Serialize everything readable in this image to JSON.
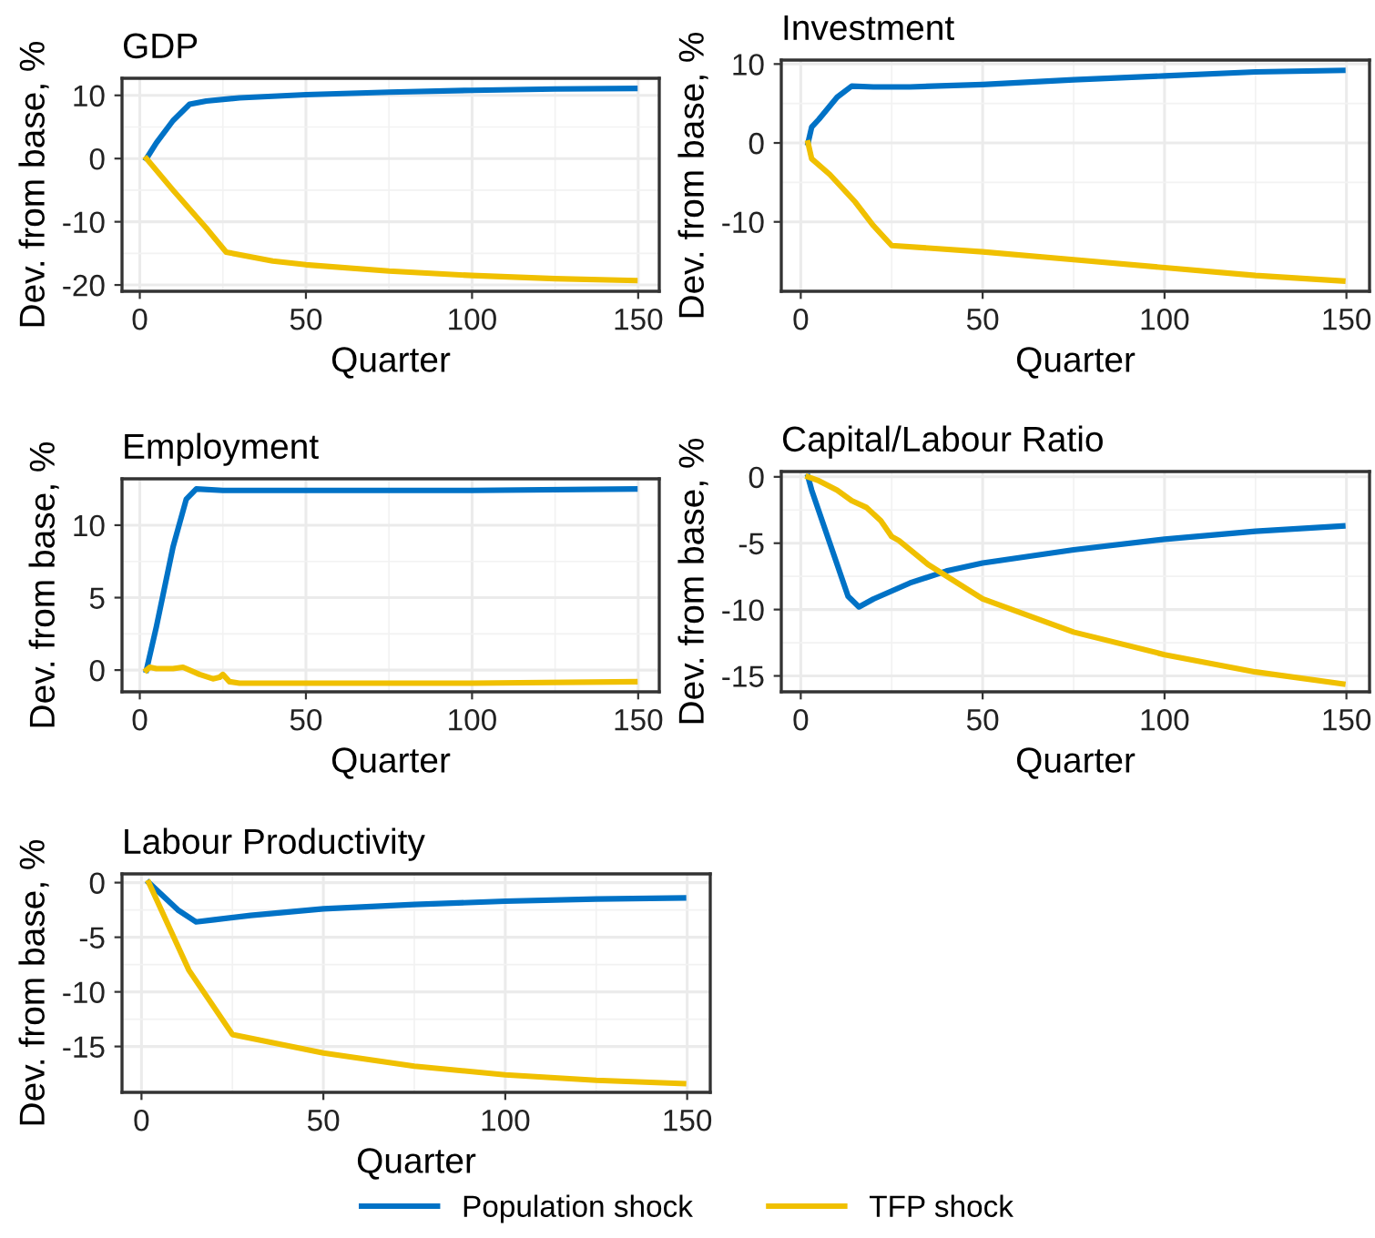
{
  "chart_data": [
    {
      "type": "line",
      "title": "GDP",
      "xlabel": "Quarter",
      "ylabel": "Dev. from base, %",
      "xlim": [
        -5.35,
        156.35
      ],
      "xticks": [
        0,
        50,
        100,
        150
      ],
      "ylim": [
        -21,
        12.7
      ],
      "yticks": [
        -20,
        -10,
        0,
        10
      ],
      "grid": true,
      "legend": "bottom",
      "series": [
        {
          "name": "Population shock",
          "color": "#0072c6",
          "x": [
            2,
            5,
            10,
            15,
            20,
            30,
            50,
            75,
            100,
            125,
            149
          ],
          "values": [
            0,
            2.5,
            6,
            8.6,
            9.1,
            9.6,
            10.1,
            10.5,
            10.8,
            11,
            11.1
          ]
        },
        {
          "name": "TFP shock",
          "color": "#f0c000",
          "x": [
            2,
            10,
            20,
            26,
            40,
            50,
            75,
            100,
            125,
            149
          ],
          "values": [
            0,
            -5,
            -11,
            -14.8,
            -16.2,
            -16.8,
            -17.8,
            -18.5,
            -19,
            -19.3
          ]
        }
      ]
    },
    {
      "type": "line",
      "title": "Investment",
      "xlabel": "Quarter",
      "ylabel": "Dev. from base, %",
      "xlim": [
        -5.35,
        156.35
      ],
      "xticks": [
        0,
        50,
        100,
        150
      ],
      "ylim": [
        -18.8,
        10.5
      ],
      "yticks": [
        -10,
        0,
        10
      ],
      "grid": true,
      "series": [
        {
          "color": "#0072c6",
          "x": [
            2,
            3,
            5,
            10,
            14,
            20,
            30,
            50,
            75,
            100,
            125,
            149
          ],
          "values": [
            0,
            2,
            3,
            5.8,
            7.2,
            7.1,
            7.1,
            7.4,
            8,
            8.5,
            9,
            9.2
          ]
        },
        {
          "color": "#f0c000",
          "x": [
            2,
            3,
            8,
            15,
            20,
            25,
            50,
            75,
            100,
            125,
            149
          ],
          "values": [
            0,
            -2,
            -4,
            -7.5,
            -10.5,
            -13,
            -13.8,
            -14.8,
            -15.8,
            -16.8,
            -17.5
          ]
        }
      ]
    },
    {
      "type": "line",
      "title": "Employment",
      "xlabel": "Quarter",
      "ylabel": "Dev. from base, %",
      "xlim": [
        -5.35,
        156.35
      ],
      "xticks": [
        0,
        50,
        100,
        150
      ],
      "ylim": [
        -1.5,
        13.2
      ],
      "yticks": [
        0,
        5,
        10
      ],
      "grid": true,
      "series": [
        {
          "color": "#0072c6",
          "x": [
            2,
            5,
            10,
            14,
            17,
            25,
            50,
            100,
            149
          ],
          "values": [
            0,
            3,
            8.5,
            11.8,
            12.5,
            12.4,
            12.4,
            12.4,
            12.5
          ]
        },
        {
          "color": "#f0c000",
          "x": [
            2,
            3,
            5,
            10,
            13,
            18,
            22,
            24,
            25,
            27,
            30,
            50,
            100,
            149
          ],
          "values": [
            0,
            0.2,
            0.1,
            0.1,
            0.2,
            -0.3,
            -0.6,
            -0.5,
            -0.3,
            -0.8,
            -0.9,
            -0.9,
            -0.9,
            -0.8
          ]
        }
      ]
    },
    {
      "type": "line",
      "title": "Capital/Labour Ratio",
      "xlabel": "Quarter",
      "ylabel": "Dev. from base, %",
      "xlim": [
        -5.35,
        156.35
      ],
      "xticks": [
        0,
        50,
        100,
        150
      ],
      "ylim": [
        -16.2,
        0.4
      ],
      "yticks": [
        -15,
        -10,
        -5,
        0
      ],
      "grid": true,
      "series": [
        {
          "color": "#0072c6",
          "x": [
            2,
            3,
            8,
            13,
            16,
            20,
            30,
            40,
            50,
            75,
            100,
            125,
            149
          ],
          "values": [
            0,
            -1,
            -5,
            -9,
            -9.8,
            -9.2,
            -8,
            -7.1,
            -6.5,
            -5.5,
            -4.7,
            -4.1,
            -3.7
          ]
        },
        {
          "color": "#f0c000",
          "x": [
            2,
            5,
            10,
            14,
            18,
            22,
            25,
            27,
            35,
            50,
            75,
            100,
            125,
            149
          ],
          "values": [
            0,
            -0.3,
            -1,
            -1.8,
            -2.3,
            -3.3,
            -4.5,
            -4.8,
            -6.6,
            -9.2,
            -11.7,
            -13.4,
            -14.7,
            -15.6
          ]
        }
      ]
    },
    {
      "type": "line",
      "title": "Labour Productivity",
      "xlabel": "Quarter",
      "ylabel": "Dev. from base, %",
      "xlim": [
        -5.35,
        156.35
      ],
      "xticks": [
        0,
        50,
        100,
        150
      ],
      "ylim": [
        -19.2,
        0.8
      ],
      "yticks": [
        -15,
        -10,
        -5,
        0
      ],
      "grid": true,
      "series": [
        {
          "color": "#0072c6",
          "x": [
            2,
            10,
            15,
            20,
            30,
            50,
            75,
            100,
            125,
            149
          ],
          "values": [
            0,
            -2.5,
            -3.6,
            -3.4,
            -3,
            -2.4,
            -2,
            -1.7,
            -1.5,
            -1.4
          ]
        },
        {
          "color": "#f0c000",
          "x": [
            2,
            13,
            25,
            50,
            75,
            100,
            125,
            149
          ],
          "values": [
            0,
            -8,
            -13.9,
            -15.6,
            -16.8,
            -17.6,
            -18.1,
            -18.4
          ]
        }
      ]
    }
  ]
}
